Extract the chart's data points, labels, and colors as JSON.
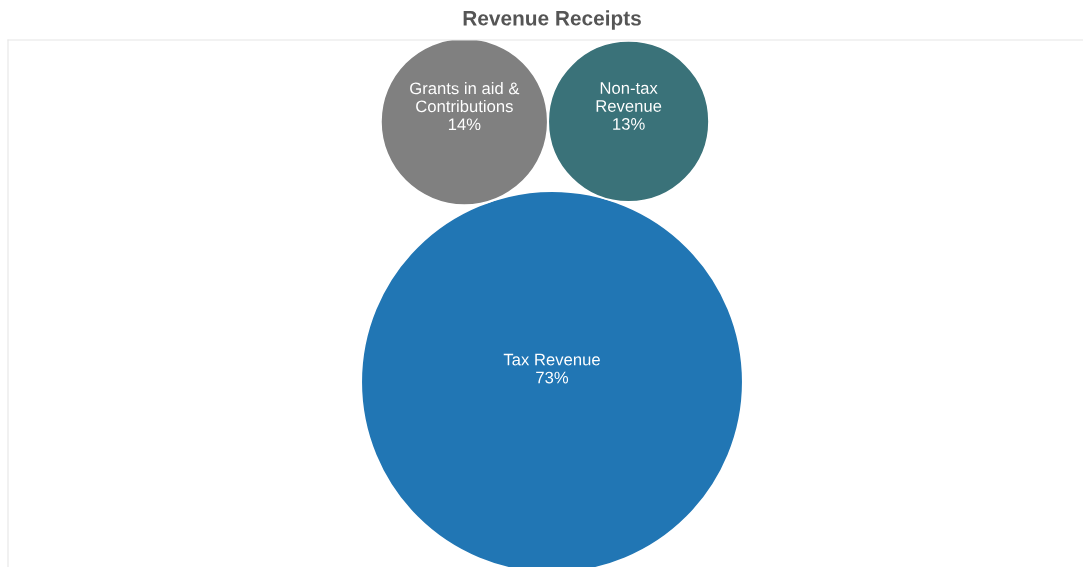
{
  "chart_data": {
    "type": "other",
    "title": "Revenue Receipts",
    "categories": [
      "Tax Revenue",
      "Grants in aid &\nContributions",
      "Non-tax\nRevenue"
    ],
    "values": [
      73,
      14,
      13
    ],
    "value_labels": [
      "73%",
      "14%",
      "13%"
    ],
    "colors": [
      "#2176b4",
      "#808080",
      "#3a7279"
    ]
  }
}
